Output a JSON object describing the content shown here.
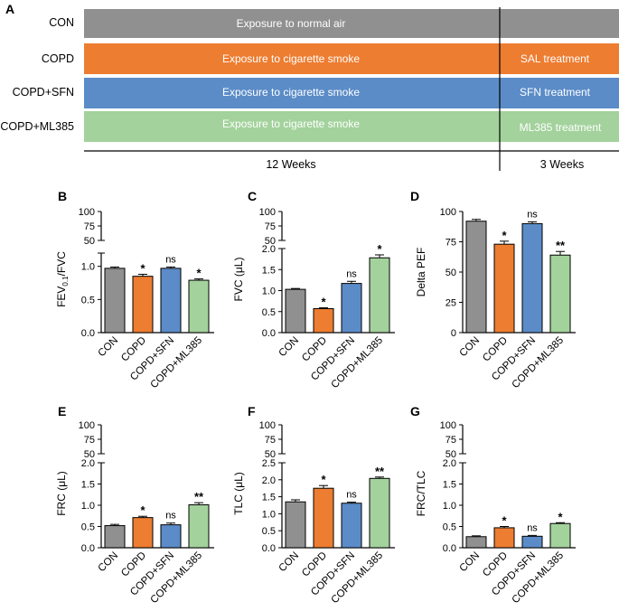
{
  "panel_a": {
    "label": "A",
    "groups": [
      {
        "name": "CON",
        "phase1": "Exposure to normal air",
        "phase2": "",
        "color": "#909090"
      },
      {
        "name": "COPD",
        "phase1": "Exposure to cigarette smoke",
        "phase2": "SAL treatment",
        "color": "#ed7d31"
      },
      {
        "name": "COPD+SFN",
        "phase1": "Exposure to cigarette smoke",
        "phase2": "SFN treatment",
        "color": "#5b8cc8"
      },
      {
        "name": "COPD+ML385",
        "phase1": "Exposure to cigarette smoke",
        "phase2": "ML385 treatment",
        "color": "#a3d29c"
      }
    ],
    "duration1": "12 Weeks",
    "duration2": "3 Weeks"
  },
  "colors": {
    "CON": "#909090",
    "COPD": "#ed7d31",
    "COPD+SFN": "#5b8cc8",
    "COPD+ML385": "#a3d29c"
  },
  "chart_data": [
    {
      "panel": "B",
      "type": "bar",
      "categories": [
        "CON",
        "COPD",
        "COPD+SFN",
        "COPD+ML385"
      ],
      "values": [
        0.97,
        0.85,
        0.97,
        0.79
      ],
      "errors": [
        0.02,
        0.03,
        0.02,
        0.02
      ],
      "significance": [
        "",
        "*",
        "ns",
        "*"
      ],
      "ylabel_main": "FEV",
      "ylabel_sub": "0.1",
      "ylabel_end": "/FVC",
      "lower_ticks": [
        "0.0",
        "0.5",
        "1.0"
      ],
      "lower_tick_values": [
        0,
        0.5,
        1.0
      ],
      "lower_range": [
        0,
        1.2
      ],
      "upper_ticks": [
        "50",
        "75",
        "100"
      ],
      "upper_tick_values": [
        50,
        75,
        100
      ],
      "upper_range": [
        50,
        100
      ]
    },
    {
      "panel": "C",
      "type": "bar",
      "categories": [
        "CON",
        "COPD",
        "COPD+SFN",
        "COPD+ML385"
      ],
      "values": [
        1.03,
        0.57,
        1.17,
        1.78
      ],
      "errors": [
        0.02,
        0.02,
        0.05,
        0.07
      ],
      "significance": [
        "",
        "*",
        "ns",
        "*"
      ],
      "ylabel_main": "FVC (μL)",
      "ylabel_sub": "",
      "ylabel_end": "",
      "lower_ticks": [
        "0.0",
        "0.5",
        "1.0",
        "1.5",
        "2.0"
      ],
      "lower_tick_values": [
        0,
        0.5,
        1.0,
        1.5,
        2.0
      ],
      "lower_range": [
        0,
        2.0
      ],
      "upper_ticks": [
        "50",
        "75",
        "100"
      ],
      "upper_tick_values": [
        50,
        75,
        100
      ],
      "upper_range": [
        50,
        100
      ]
    },
    {
      "panel": "D",
      "type": "bar",
      "categories": [
        "CON",
        "COPD",
        "COPD+SFN",
        "COPD+ML385"
      ],
      "values": [
        92,
        73,
        90,
        64
      ],
      "errors": [
        1.5,
        2.5,
        1.5,
        3
      ],
      "significance": [
        "",
        "*",
        "ns",
        "**"
      ],
      "ylabel_main": "Delta PEF",
      "ylabel_sub": "",
      "ylabel_end": "",
      "ticks": [
        "0",
        "25",
        "50",
        "75",
        "100"
      ],
      "tick_values": [
        0,
        25,
        50,
        75,
        100
      ],
      "ylim": [
        0,
        100
      ]
    },
    {
      "panel": "E",
      "type": "bar",
      "categories": [
        "CON",
        "COPD",
        "COPD+SFN",
        "COPD+ML385"
      ],
      "values": [
        0.52,
        0.71,
        0.54,
        1.01
      ],
      "errors": [
        0.03,
        0.03,
        0.04,
        0.05
      ],
      "significance": [
        "",
        "*",
        "ns",
        "**"
      ],
      "ylabel_main": "FRC (μL)",
      "ylabel_sub": "",
      "ylabel_end": "",
      "lower_ticks": [
        "0.0",
        "0.5",
        "1.0",
        "1.5",
        "2.0"
      ],
      "lower_tick_values": [
        0,
        0.5,
        1.0,
        1.5,
        2.0
      ],
      "lower_range": [
        0,
        2.0
      ],
      "upper_ticks": [
        "50",
        "75",
        "100"
      ],
      "upper_tick_values": [
        50,
        75,
        100
      ],
      "upper_range": [
        50,
        100
      ]
    },
    {
      "panel": "F",
      "type": "bar",
      "categories": [
        "CON",
        "COPD",
        "COPD+SFN",
        "COPD+ML385"
      ],
      "values": [
        1.35,
        1.75,
        1.31,
        2.04
      ],
      "errors": [
        0.06,
        0.08,
        0.03,
        0.04
      ],
      "significance": [
        "",
        "*",
        "ns",
        "**"
      ],
      "ylabel_main": "TLC (μL)",
      "ylabel_sub": "",
      "ylabel_end": "",
      "lower_ticks": [
        "0.0",
        "0.5",
        "1.0",
        "1.5",
        "2.0",
        "2.5"
      ],
      "lower_tick_values": [
        0,
        0.5,
        1.0,
        1.5,
        2.0,
        2.5
      ],
      "lower_range": [
        0,
        2.5
      ],
      "upper_ticks": [
        "50",
        "75",
        "100"
      ],
      "upper_tick_values": [
        50,
        75,
        100
      ],
      "upper_range": [
        50,
        100
      ]
    },
    {
      "panel": "G",
      "type": "bar",
      "categories": [
        "CON",
        "COPD",
        "COPD+SFN",
        "COPD+ML385"
      ],
      "values": [
        0.26,
        0.47,
        0.27,
        0.57
      ],
      "errors": [
        0.02,
        0.03,
        0.02,
        0.02
      ],
      "significance": [
        "",
        "*",
        "ns",
        "*"
      ],
      "ylabel_main": "FRC/TLC",
      "ylabel_sub": "",
      "ylabel_end": "",
      "lower_ticks": [
        "0.0",
        "0.5",
        "1.0",
        "1.5",
        "2.0"
      ],
      "lower_tick_values": [
        0,
        0.5,
        1.0,
        1.5,
        2.0
      ],
      "lower_range": [
        0,
        2.0
      ],
      "upper_ticks": [
        "50",
        "75",
        "100"
      ],
      "upper_tick_values": [
        50,
        75,
        100
      ],
      "upper_range": [
        50,
        100
      ]
    }
  ]
}
